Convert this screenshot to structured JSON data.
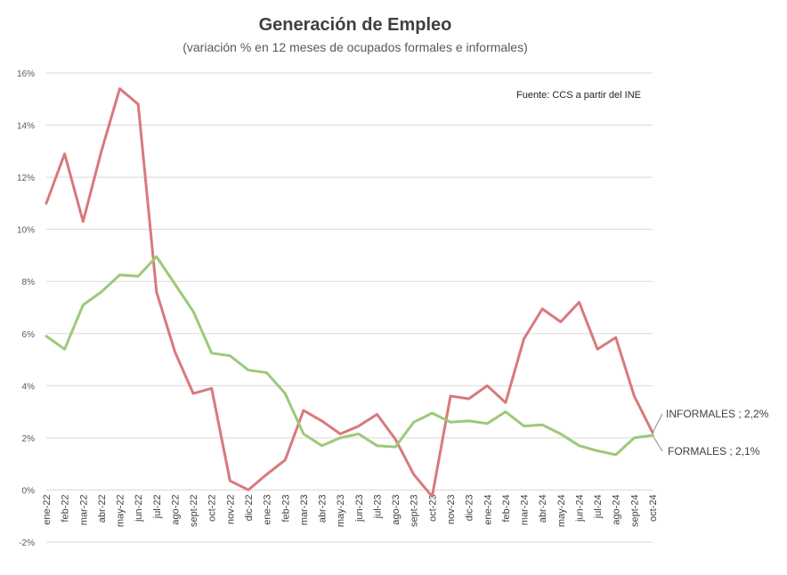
{
  "chart_data": {
    "type": "line",
    "title": "Generación de Empleo",
    "subtitle": "(variación % en 12 meses de ocupados formales e informales)",
    "source_note": "Fuente: CCS a partir del INE",
    "ylim": [
      -2,
      16
    ],
    "yticks": [
      "-2%",
      "0%",
      "2%",
      "4%",
      "6%",
      "8%",
      "10%",
      "12%",
      "14%",
      "16%"
    ],
    "ytick_values": [
      -2,
      0,
      2,
      4,
      6,
      8,
      10,
      12,
      14,
      16
    ],
    "categories": [
      "ene-22",
      "feb-22",
      "mar-22",
      "abr-22",
      "may-22",
      "jun-22",
      "jul-22",
      "ago-22",
      "sept-22",
      "oct-22",
      "nov-22",
      "dic-22",
      "ene-23",
      "feb-23",
      "mar-23",
      "abr-23",
      "may-23",
      "jun-23",
      "jul-23",
      "ago-23",
      "sept-23",
      "oct-23",
      "nov-23",
      "dic-23",
      "ene-24",
      "feb-24",
      "mar-24",
      "abr-24",
      "may-24",
      "jun-24",
      "jul-24",
      "ago-24",
      "sept-24",
      "oct-24"
    ],
    "series": [
      {
        "name": "INFORMALES",
        "color": "#d9797b",
        "end_label": "INFORMALES ; 2,2%",
        "values": [
          11.0,
          12.9,
          10.3,
          13.0,
          15.4,
          14.8,
          7.6,
          5.3,
          3.7,
          3.9,
          0.35,
          0.0,
          0.6,
          1.15,
          3.05,
          2.65,
          2.15,
          2.45,
          2.9,
          1.95,
          0.6,
          -0.25,
          3.6,
          3.5,
          4.0,
          3.35,
          5.8,
          6.95,
          6.45,
          7.2,
          5.4,
          5.85,
          3.6,
          2.2
        ]
      },
      {
        "name": "FORMALES",
        "color": "#9dc97b",
        "end_label": "FORMALES ; 2,1%",
        "values": [
          5.9,
          5.4,
          7.1,
          7.6,
          8.25,
          8.2,
          8.95,
          7.9,
          6.85,
          5.25,
          5.15,
          4.6,
          4.5,
          3.7,
          2.15,
          1.7,
          2.0,
          2.15,
          1.7,
          1.65,
          2.6,
          2.95,
          2.6,
          2.65,
          2.55,
          3.0,
          2.45,
          2.5,
          2.15,
          1.7,
          1.5,
          1.35,
          2.0,
          2.1
        ]
      }
    ]
  }
}
